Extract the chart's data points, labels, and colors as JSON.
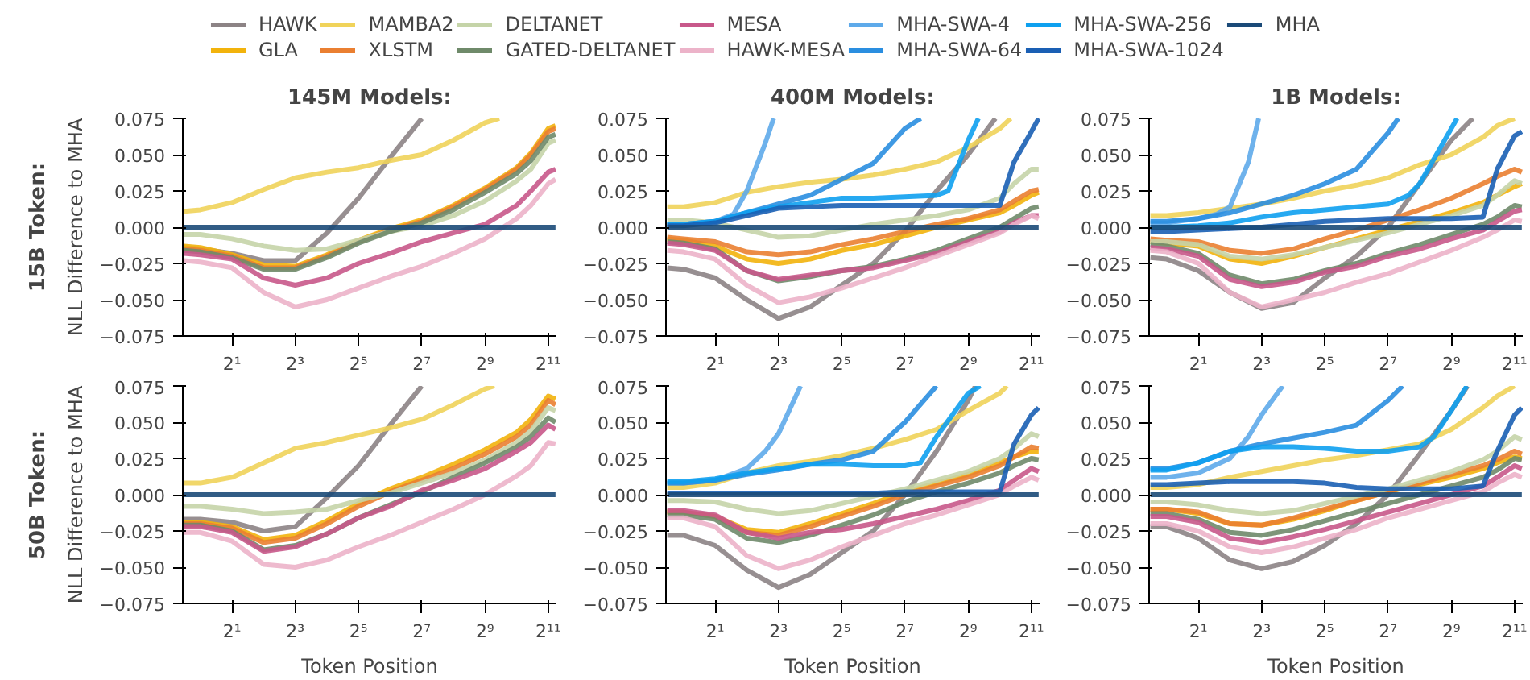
{
  "chart_data": [
    {
      "type": "line",
      "title": "145M Models:",
      "ylabel": "NLL Difference to MHA",
      "annotations": [
        "15B Token:"
      ],
      "log": "x",
      "xlim": [
        0.68,
        2450
      ],
      "ylim": [
        -0.075,
        0.075
      ],
      "xticks": [
        {
          "value": 2,
          "label": "2¹"
        },
        {
          "value": 8,
          "label": "2³"
        },
        {
          "value": 32,
          "label": "2⁵"
        },
        {
          "value": 128,
          "label": "2⁷"
        },
        {
          "value": 512,
          "label": "2⁹"
        },
        {
          "value": 2048,
          "label": "2¹¹"
        }
      ],
      "yticks": [
        {
          "value": -0.075,
          "label": "−0.075"
        },
        {
          "value": -0.05,
          "label": "−0.050"
        },
        {
          "value": -0.025,
          "label": "−0.025"
        },
        {
          "value": 0,
          "label": "0.000"
        },
        {
          "value": 0.025,
          "label": "0.025"
        },
        {
          "value": 0.05,
          "label": "0.050"
        },
        {
          "value": 0.075,
          "label": "0.075"
        }
      ],
      "x": [
        0.7,
        1,
        2,
        4,
        8,
        16,
        32,
        64,
        128,
        256,
        512,
        1024,
        1400,
        2048,
        2400
      ],
      "series": [
        {
          "color": "#8c8385",
          "x": [
            0.7,
            1,
            2,
            4,
            8,
            16,
            32,
            64,
            128
          ],
          "values": [
            -0.014,
            -0.015,
            -0.018,
            -0.023,
            -0.023,
            -0.004,
            0.02,
            0.048,
            0.075
          ]
        },
        {
          "color": "#f2b30c",
          "values": [
            -0.013,
            -0.014,
            -0.019,
            -0.026,
            -0.027,
            -0.019,
            -0.009,
            -0.001,
            0.005,
            0.015,
            0.027,
            0.041,
            0.051,
            0.068,
            0.07
          ]
        },
        {
          "color": "#f0d35a",
          "x": [
            0.7,
            1,
            2,
            4,
            8,
            16,
            32,
            64,
            128,
            256,
            512,
            700
          ],
          "values": [
            0.011,
            0.012,
            0.017,
            0.026,
            0.034,
            0.038,
            0.041,
            0.046,
            0.05,
            0.06,
            0.072,
            0.075
          ]
        },
        {
          "color": "#ea7f31",
          "values": [
            -0.015,
            -0.016,
            -0.02,
            -0.028,
            -0.028,
            -0.02,
            -0.01,
            -0.002,
            0.004,
            0.014,
            0.026,
            0.04,
            0.05,
            0.066,
            0.068
          ]
        },
        {
          "color": "#c5d4a8",
          "values": [
            -0.005,
            -0.005,
            -0.008,
            -0.013,
            -0.016,
            -0.015,
            -0.009,
            -0.003,
            0.001,
            0.008,
            0.018,
            0.032,
            0.04,
            0.058,
            0.06
          ]
        },
        {
          "color": "#6f8a6a",
          "values": [
            -0.016,
            -0.017,
            -0.021,
            -0.029,
            -0.029,
            -0.021,
            -0.011,
            -0.003,
            0.003,
            0.012,
            0.024,
            0.037,
            0.046,
            0.062,
            0.064
          ]
        },
        {
          "color": "#c8588a",
          "values": [
            -0.018,
            -0.019,
            -0.022,
            -0.035,
            -0.04,
            -0.035,
            -0.025,
            -0.018,
            -0.01,
            -0.004,
            0.002,
            0.015,
            0.025,
            0.038,
            0.04
          ]
        },
        {
          "color": "#ecb3c9",
          "values": [
            -0.023,
            -0.024,
            -0.028,
            -0.045,
            -0.055,
            -0.05,
            -0.042,
            -0.034,
            -0.027,
            -0.018,
            -0.008,
            0.006,
            0.015,
            0.03,
            0.033
          ]
        },
        {
          "color": "#1b4a78",
          "values": [
            0,
            0,
            0,
            0,
            0,
            0,
            0,
            0,
            0,
            0,
            0,
            0,
            0,
            0,
            0
          ]
        }
      ]
    },
    {
      "type": "line",
      "title": "400M Models:",
      "legend": "top",
      "log": "x",
      "xlim": [
        0.68,
        2450
      ],
      "ylim": [
        -0.075,
        0.075
      ],
      "xticks": [
        {
          "value": 2,
          "label": "2¹"
        },
        {
          "value": 8,
          "label": "2³"
        },
        {
          "value": 32,
          "label": "2⁵"
        },
        {
          "value": 128,
          "label": "2⁷"
        },
        {
          "value": 512,
          "label": "2⁹"
        },
        {
          "value": 2048,
          "label": "2¹¹"
        }
      ],
      "yticks": [
        {
          "value": -0.075,
          "label": "−0.075"
        },
        {
          "value": -0.05,
          "label": "−0.050"
        },
        {
          "value": -0.025,
          "label": "−0.025"
        },
        {
          "value": 0,
          "label": "0.000"
        },
        {
          "value": 0.025,
          "label": "0.025"
        },
        {
          "value": 0.05,
          "label": "0.050"
        },
        {
          "value": 0.075,
          "label": "0.075"
        }
      ],
      "x": [
        0.7,
        1,
        2,
        4,
        8,
        16,
        32,
        64,
        128,
        256,
        512,
        1024,
        1400,
        2048,
        2400
      ],
      "series": [
        {
          "name": "HAWK",
          "color": "#8c8385",
          "x": [
            0.7,
            1,
            2,
            4,
            8,
            16,
            32,
            64,
            128,
            256,
            512,
            930
          ],
          "values": [
            -0.028,
            -0.029,
            -0.035,
            -0.05,
            -0.063,
            -0.055,
            -0.04,
            -0.025,
            -0.003,
            0.025,
            0.05,
            0.075
          ]
        },
        {
          "name": "GLA",
          "color": "#f2b30c",
          "values": [
            -0.008,
            -0.009,
            -0.013,
            -0.022,
            -0.025,
            -0.022,
            -0.016,
            -0.012,
            -0.006,
            0.0,
            0.005,
            0.01,
            0.015,
            0.022,
            0.024
          ]
        },
        {
          "name": "MAMBA2",
          "color": "#f0d35a",
          "x": [
            0.7,
            1,
            2,
            4,
            8,
            16,
            32,
            64,
            128,
            256,
            512,
            1024,
            1300
          ],
          "values": [
            0.014,
            0.014,
            0.017,
            0.024,
            0.028,
            0.031,
            0.033,
            0.036,
            0.04,
            0.045,
            0.055,
            0.068,
            0.075
          ]
        },
        {
          "name": "XLSTM",
          "color": "#ea7f31",
          "values": [
            -0.007,
            -0.008,
            -0.01,
            -0.017,
            -0.019,
            -0.017,
            -0.012,
            -0.008,
            -0.003,
            0.002,
            0.006,
            0.012,
            0.018,
            0.025,
            0.026
          ]
        },
        {
          "name": "DELTANET",
          "color": "#c5d4a8",
          "values": [
            0.005,
            0.005,
            0.003,
            -0.002,
            -0.007,
            -0.006,
            -0.002,
            0.002,
            0.005,
            0.008,
            0.012,
            0.02,
            0.03,
            0.04,
            0.04
          ]
        },
        {
          "name": "GATED-DELTANET",
          "color": "#6f8a6a",
          "values": [
            -0.01,
            -0.011,
            -0.015,
            -0.03,
            -0.037,
            -0.034,
            -0.03,
            -0.027,
            -0.022,
            -0.016,
            -0.008,
            0.0,
            0.006,
            0.013,
            0.014
          ]
        },
        {
          "name": "MESA",
          "color": "#c8588a",
          "values": [
            -0.011,
            -0.012,
            -0.016,
            -0.03,
            -0.036,
            -0.033,
            -0.03,
            -0.028,
            -0.023,
            -0.018,
            -0.01,
            -0.003,
            0.003,
            0.008,
            0.008
          ]
        },
        {
          "name": "HAWK-MESA",
          "color": "#ecb3c9",
          "values": [
            -0.016,
            -0.017,
            -0.022,
            -0.04,
            -0.052,
            -0.048,
            -0.042,
            -0.035,
            -0.028,
            -0.02,
            -0.012,
            -0.004,
            0.002,
            0.008,
            0.006
          ]
        },
        {
          "name": "MHA-SWA-4",
          "color": "#5eaaea",
          "x": [
            0.7,
            1,
            2,
            3,
            4,
            6,
            7.2
          ],
          "values": [
            0.002,
            0.002,
            0.004,
            0.009,
            0.025,
            0.058,
            0.075
          ]
        },
        {
          "name": "MHA-SWA-64",
          "color": "#2a8ee0",
          "x": [
            0.7,
            1,
            2,
            4,
            8,
            16,
            32,
            64,
            128,
            181
          ],
          "values": [
            0.002,
            0.002,
            0.004,
            0.01,
            0.016,
            0.022,
            0.033,
            0.044,
            0.068,
            0.075
          ]
        },
        {
          "name": "MHA-SWA-256",
          "color": "#0ea0ef",
          "x": [
            0.7,
            1,
            2,
            4,
            8,
            16,
            32,
            64,
            128,
            256,
            330,
            512,
            640
          ],
          "values": [
            0.002,
            0.002,
            0.004,
            0.01,
            0.014,
            0.017,
            0.02,
            0.02,
            0.021,
            0.022,
            0.025,
            0.06,
            0.075
          ]
        },
        {
          "name": "MHA-SWA-1024",
          "color": "#1a5fb4",
          "values": [
            0.001,
            0.001,
            0.003,
            0.008,
            0.013,
            0.014,
            0.015,
            0.015,
            0.015,
            0.015,
            0.015,
            0.015,
            0.045,
            0.066,
            0.075
          ]
        },
        {
          "name": "MHA",
          "color": "#1b4a78",
          "values": [
            0,
            0,
            0,
            0,
            0,
            0,
            0,
            0,
            0,
            0,
            0,
            0,
            0,
            0,
            0
          ]
        }
      ]
    },
    {
      "type": "line",
      "title": "1B Models:",
      "log": "x",
      "xlim": [
        0.68,
        2450
      ],
      "ylim": [
        -0.075,
        0.075
      ],
      "xticks": [
        {
          "value": 2,
          "label": "2¹"
        },
        {
          "value": 8,
          "label": "2³"
        },
        {
          "value": 32,
          "label": "2⁵"
        },
        {
          "value": 128,
          "label": "2⁷"
        },
        {
          "value": 512,
          "label": "2⁹"
        },
        {
          "value": 2048,
          "label": "2¹¹"
        }
      ],
      "yticks": [
        {
          "value": -0.075,
          "label": "−0.075"
        },
        {
          "value": -0.05,
          "label": "−0.050"
        },
        {
          "value": -0.025,
          "label": "−0.025"
        },
        {
          "value": 0,
          "label": "0.000"
        },
        {
          "value": 0.025,
          "label": "0.025"
        },
        {
          "value": 0.05,
          "label": "0.050"
        },
        {
          "value": 0.075,
          "label": "0.075"
        }
      ],
      "x": [
        0.7,
        1,
        2,
        4,
        8,
        16,
        32,
        64,
        128,
        256,
        512,
        1024,
        1400,
        2048,
        2400
      ],
      "series": [
        {
          "color": "#8c8385",
          "x": [
            0.7,
            1,
            2,
            4,
            8,
            16,
            32,
            64,
            128,
            256,
            512,
            820
          ],
          "values": [
            -0.021,
            -0.022,
            -0.03,
            -0.045,
            -0.056,
            -0.052,
            -0.035,
            -0.02,
            0.0,
            0.03,
            0.06,
            0.075
          ]
        },
        {
          "color": "#f2b30c",
          "values": [
            -0.01,
            -0.011,
            -0.013,
            -0.022,
            -0.025,
            -0.02,
            -0.014,
            -0.008,
            -0.002,
            0.004,
            0.01,
            0.017,
            0.022,
            0.028,
            0.03
          ]
        },
        {
          "color": "#f0d35a",
          "x": [
            0.7,
            1,
            2,
            4,
            8,
            16,
            32,
            64,
            128,
            256,
            512,
            1024,
            1400,
            2048
          ],
          "values": [
            0.008,
            0.008,
            0.01,
            0.013,
            0.016,
            0.02,
            0.025,
            0.029,
            0.034,
            0.043,
            0.05,
            0.062,
            0.07,
            0.075
          ]
        },
        {
          "color": "#ea7f31",
          "values": [
            -0.008,
            -0.009,
            -0.01,
            -0.016,
            -0.018,
            -0.015,
            -0.008,
            -0.002,
            0.005,
            0.012,
            0.02,
            0.03,
            0.035,
            0.04,
            0.038
          ]
        },
        {
          "color": "#c5d4a8",
          "values": [
            -0.01,
            -0.01,
            -0.012,
            -0.02,
            -0.022,
            -0.019,
            -0.014,
            -0.009,
            -0.004,
            0.002,
            0.008,
            0.015,
            0.022,
            0.032,
            0.03
          ]
        },
        {
          "color": "#6f8a6a",
          "values": [
            -0.012,
            -0.013,
            -0.018,
            -0.033,
            -0.039,
            -0.036,
            -0.03,
            -0.025,
            -0.018,
            -0.012,
            -0.005,
            0.002,
            0.007,
            0.015,
            0.014
          ]
        },
        {
          "color": "#c8588a",
          "values": [
            -0.014,
            -0.015,
            -0.02,
            -0.036,
            -0.041,
            -0.038,
            -0.031,
            -0.027,
            -0.02,
            -0.015,
            -0.008,
            -0.002,
            0.004,
            0.011,
            0.012
          ]
        },
        {
          "color": "#ecb3c9",
          "values": [
            -0.016,
            -0.017,
            -0.025,
            -0.045,
            -0.055,
            -0.05,
            -0.045,
            -0.038,
            -0.032,
            -0.024,
            -0.016,
            -0.007,
            -0.002,
            0.005,
            0.004
          ]
        },
        {
          "color": "#5eaaea",
          "x": [
            0.7,
            1,
            2,
            3,
            4,
            6,
            7.5
          ],
          "values": [
            0.003,
            0.003,
            0.006,
            0.009,
            0.014,
            0.045,
            0.075
          ]
        },
        {
          "color": "#2a8ee0",
          "x": [
            0.7,
            1,
            2,
            4,
            8,
            16,
            32,
            64,
            128,
            160
          ],
          "values": [
            0.004,
            0.004,
            0.006,
            0.01,
            0.016,
            0.022,
            0.03,
            0.04,
            0.065,
            0.075
          ]
        },
        {
          "color": "#0ea0ef",
          "x": [
            0.7,
            1,
            2,
            4,
            8,
            16,
            32,
            64,
            128,
            200,
            256,
            512,
            580
          ],
          "values": [
            0.0,
            0.0,
            0.001,
            0.003,
            0.007,
            0.01,
            0.012,
            0.014,
            0.016,
            0.022,
            0.03,
            0.068,
            0.075
          ]
        },
        {
          "color": "#1a5fb4",
          "values": [
            -0.003,
            -0.003,
            -0.002,
            -0.001,
            0.0,
            0.002,
            0.004,
            0.005,
            0.006,
            0.006,
            0.006,
            0.007,
            0.04,
            0.063,
            0.066
          ]
        },
        {
          "color": "#1b4a78",
          "values": [
            0,
            0,
            0,
            0,
            0,
            0,
            0,
            0,
            0,
            0,
            0,
            0,
            0,
            0,
            0
          ]
        }
      ]
    },
    {
      "type": "line",
      "xlabel": "Token Position",
      "ylabel": "NLL Difference to MHA",
      "annotations": [
        "50B Token:"
      ],
      "log": "x",
      "xlim": [
        0.68,
        2450
      ],
      "ylim": [
        -0.075,
        0.075
      ],
      "xticks": [
        {
          "value": 2,
          "label": "2¹"
        },
        {
          "value": 8,
          "label": "2³"
        },
        {
          "value": 32,
          "label": "2⁵"
        },
        {
          "value": 128,
          "label": "2⁷"
        },
        {
          "value": 512,
          "label": "2⁹"
        },
        {
          "value": 2048,
          "label": "2¹¹"
        }
      ],
      "yticks": [
        {
          "value": -0.075,
          "label": "−0.075"
        },
        {
          "value": -0.05,
          "label": "−0.050"
        },
        {
          "value": -0.025,
          "label": "−0.025"
        },
        {
          "value": 0,
          "label": "0.000"
        },
        {
          "value": 0.025,
          "label": "0.025"
        },
        {
          "value": 0.05,
          "label": "0.050"
        },
        {
          "value": 0.075,
          "label": "0.075"
        }
      ],
      "x": [
        0.7,
        1,
        2,
        4,
        8,
        16,
        32,
        64,
        128,
        256,
        512,
        1024,
        1400,
        2048,
        2400
      ],
      "series": [
        {
          "color": "#8c8385",
          "x": [
            0.7,
            1,
            2,
            4,
            8,
            16,
            32,
            64,
            128
          ],
          "values": [
            -0.017,
            -0.017,
            -0.019,
            -0.025,
            -0.022,
            -0.002,
            0.02,
            0.048,
            0.075
          ]
        },
        {
          "color": "#f2b30c",
          "values": [
            -0.019,
            -0.019,
            -0.022,
            -0.031,
            -0.028,
            -0.018,
            -0.006,
            0.004,
            0.012,
            0.021,
            0.031,
            0.043,
            0.052,
            0.068,
            0.066
          ]
        },
        {
          "color": "#f0d35a",
          "x": [
            0.7,
            1,
            2,
            4,
            8,
            16,
            32,
            64,
            128,
            256,
            512,
            630
          ],
          "values": [
            0.008,
            0.008,
            0.012,
            0.022,
            0.032,
            0.036,
            0.041,
            0.046,
            0.052,
            0.062,
            0.073,
            0.075
          ]
        },
        {
          "color": "#ea7f31",
          "values": [
            -0.02,
            -0.02,
            -0.023,
            -0.033,
            -0.03,
            -0.02,
            -0.008,
            0.002,
            0.01,
            0.018,
            0.028,
            0.04,
            0.048,
            0.065,
            0.062
          ]
        },
        {
          "color": "#c5d4a8",
          "values": [
            -0.008,
            -0.008,
            -0.01,
            -0.013,
            -0.012,
            -0.01,
            -0.004,
            0.001,
            0.008,
            0.015,
            0.024,
            0.036,
            0.044,
            0.06,
            0.058
          ]
        },
        {
          "color": "#6f8a6a",
          "values": [
            -0.021,
            -0.021,
            -0.025,
            -0.038,
            -0.035,
            -0.027,
            -0.016,
            -0.007,
            0.002,
            0.012,
            0.022,
            0.033,
            0.04,
            0.053,
            0.05
          ]
        },
        {
          "color": "#c8588a",
          "values": [
            -0.022,
            -0.022,
            -0.026,
            -0.039,
            -0.036,
            -0.027,
            -0.016,
            -0.008,
            0.003,
            0.01,
            0.018,
            0.03,
            0.036,
            0.048,
            0.045
          ]
        },
        {
          "color": "#ecb3c9",
          "values": [
            -0.026,
            -0.026,
            -0.032,
            -0.048,
            -0.05,
            -0.045,
            -0.036,
            -0.028,
            -0.019,
            -0.01,
            0.0,
            0.013,
            0.02,
            0.036,
            0.035
          ]
        },
        {
          "color": "#1b4a78",
          "values": [
            0,
            0,
            0,
            0,
            0,
            0,
            0,
            0,
            0,
            0,
            0,
            0,
            0,
            0,
            0
          ]
        }
      ]
    },
    {
      "type": "line",
      "xlabel": "Token Position",
      "log": "x",
      "xlim": [
        0.68,
        2450
      ],
      "ylim": [
        -0.075,
        0.075
      ],
      "xticks": [
        {
          "value": 2,
          "label": "2¹"
        },
        {
          "value": 8,
          "label": "2³"
        },
        {
          "value": 32,
          "label": "2⁵"
        },
        {
          "value": 128,
          "label": "2⁷"
        },
        {
          "value": 512,
          "label": "2⁹"
        },
        {
          "value": 2048,
          "label": "2¹¹"
        }
      ],
      "yticks": [
        {
          "value": -0.075,
          "label": "−0.075"
        },
        {
          "value": -0.05,
          "label": "−0.050"
        },
        {
          "value": -0.025,
          "label": "−0.025"
        },
        {
          "value": 0,
          "label": "0.000"
        },
        {
          "value": 0.025,
          "label": "0.025"
        },
        {
          "value": 0.05,
          "label": "0.050"
        },
        {
          "value": 0.075,
          "label": "0.075"
        }
      ],
      "x": [
        0.7,
        1,
        2,
        4,
        8,
        16,
        32,
        64,
        128,
        256,
        512,
        1024,
        1400,
        2048,
        2400
      ],
      "series": [
        {
          "color": "#8c8385",
          "x": [
            0.7,
            1,
            2,
            4,
            8,
            16,
            32,
            64,
            128,
            256,
            512,
            600
          ],
          "values": [
            -0.028,
            -0.028,
            -0.035,
            -0.052,
            -0.064,
            -0.055,
            -0.04,
            -0.025,
            0.0,
            0.03,
            0.065,
            0.075
          ]
        },
        {
          "color": "#f2b30c",
          "values": [
            -0.012,
            -0.012,
            -0.015,
            -0.024,
            -0.026,
            -0.02,
            -0.013,
            -0.006,
            0.002,
            0.008,
            0.014,
            0.022,
            0.026,
            0.03,
            0.03
          ]
        },
        {
          "color": "#f0d35a",
          "x": [
            0.7,
            1,
            2,
            4,
            8,
            16,
            32,
            64,
            128,
            256,
            512,
            1024,
            1200
          ],
          "values": [
            0.005,
            0.005,
            0.008,
            0.015,
            0.02,
            0.023,
            0.027,
            0.032,
            0.038,
            0.045,
            0.058,
            0.07,
            0.075
          ]
        },
        {
          "color": "#ea7f31",
          "values": [
            -0.012,
            -0.012,
            -0.015,
            -0.026,
            -0.028,
            -0.022,
            -0.015,
            -0.008,
            0.0,
            0.006,
            0.012,
            0.02,
            0.026,
            0.033,
            0.032
          ]
        },
        {
          "color": "#c5d4a8",
          "values": [
            -0.004,
            -0.004,
            -0.005,
            -0.01,
            -0.013,
            -0.011,
            -0.006,
            -0.001,
            0.004,
            0.01,
            0.016,
            0.025,
            0.032,
            0.042,
            0.04
          ]
        },
        {
          "color": "#6f8a6a",
          "values": [
            -0.014,
            -0.014,
            -0.017,
            -0.03,
            -0.033,
            -0.028,
            -0.021,
            -0.014,
            -0.005,
            0.002,
            0.008,
            0.015,
            0.02,
            0.025,
            0.024
          ]
        },
        {
          "color": "#c8588a",
          "values": [
            -0.011,
            -0.011,
            -0.014,
            -0.026,
            -0.03,
            -0.026,
            -0.024,
            -0.02,
            -0.015,
            -0.01,
            -0.004,
            0.003,
            0.01,
            0.018,
            0.016
          ]
        },
        {
          "color": "#ecb3c9",
          "values": [
            -0.016,
            -0.016,
            -0.022,
            -0.042,
            -0.051,
            -0.045,
            -0.036,
            -0.028,
            -0.02,
            -0.014,
            -0.007,
            0.0,
            0.006,
            0.012,
            0.01
          ]
        },
        {
          "color": "#5eaaea",
          "x": [
            0.7,
            1,
            2,
            4,
            6,
            8,
            13
          ],
          "values": [
            0.008,
            0.008,
            0.01,
            0.018,
            0.03,
            0.042,
            0.075
          ]
        },
        {
          "color": "#2a8ee0",
          "x": [
            0.7,
            1,
            2,
            4,
            8,
            16,
            32,
            64,
            128,
            256
          ],
          "values": [
            0.008,
            0.008,
            0.01,
            0.014,
            0.017,
            0.021,
            0.024,
            0.03,
            0.05,
            0.075
          ]
        },
        {
          "color": "#0ea0ef",
          "x": [
            0.7,
            1,
            2,
            4,
            8,
            16,
            32,
            64,
            128,
            180,
            256,
            512,
            670
          ],
          "values": [
            0.009,
            0.009,
            0.011,
            0.015,
            0.018,
            0.021,
            0.021,
            0.02,
            0.02,
            0.022,
            0.04,
            0.07,
            0.075
          ]
        },
        {
          "color": "#1a5fb4",
          "values": [
            0.001,
            0.001,
            0.001,
            0.001,
            0.001,
            0.001,
            0.001,
            0.001,
            0.002,
            0.002,
            0.002,
            0.002,
            0.035,
            0.055,
            0.06
          ]
        },
        {
          "color": "#1b4a78",
          "values": [
            0,
            0,
            0,
            0,
            0,
            0,
            0,
            0,
            0,
            0,
            0,
            0,
            0,
            0,
            0
          ]
        }
      ]
    },
    {
      "type": "line",
      "xlabel": "Token Position",
      "log": "x",
      "xlim": [
        0.68,
        2450
      ],
      "ylim": [
        -0.075,
        0.075
      ],
      "xticks": [
        {
          "value": 2,
          "label": "2¹"
        },
        {
          "value": 8,
          "label": "2³"
        },
        {
          "value": 32,
          "label": "2⁵"
        },
        {
          "value": 128,
          "label": "2⁷"
        },
        {
          "value": 512,
          "label": "2⁹"
        },
        {
          "value": 2048,
          "label": "2¹¹"
        }
      ],
      "yticks": [
        {
          "value": -0.075,
          "label": "−0.075"
        },
        {
          "value": -0.05,
          "label": "−0.050"
        },
        {
          "value": -0.025,
          "label": "−0.025"
        },
        {
          "value": 0,
          "label": "0.000"
        },
        {
          "value": 0.025,
          "label": "0.025"
        },
        {
          "value": 0.05,
          "label": "0.050"
        },
        {
          "value": 0.075,
          "label": "0.075"
        }
      ],
      "x": [
        0.7,
        1,
        2,
        4,
        8,
        16,
        32,
        64,
        128,
        256,
        512,
        1024,
        1400,
        2048,
        2400
      ],
      "series": [
        {
          "color": "#8c8385",
          "x": [
            0.7,
            1,
            2,
            4,
            8,
            16,
            32,
            64,
            128,
            256,
            512,
            730
          ],
          "values": [
            -0.022,
            -0.022,
            -0.03,
            -0.045,
            -0.051,
            -0.046,
            -0.035,
            -0.02,
            0.0,
            0.028,
            0.058,
            0.075
          ]
        },
        {
          "color": "#f2b30c",
          "values": [
            -0.01,
            -0.01,
            -0.013,
            -0.02,
            -0.021,
            -0.017,
            -0.011,
            -0.004,
            0.002,
            0.007,
            0.012,
            0.018,
            0.022,
            0.026,
            0.025
          ]
        },
        {
          "color": "#f0d35a",
          "x": [
            0.7,
            1,
            2,
            4,
            8,
            16,
            32,
            64,
            128,
            256,
            512,
            1024,
            1400,
            2048
          ],
          "values": [
            0.005,
            0.005,
            0.007,
            0.012,
            0.016,
            0.02,
            0.024,
            0.027,
            0.031,
            0.035,
            0.045,
            0.06,
            0.068,
            0.075
          ]
        },
        {
          "color": "#ea7f31",
          "values": [
            -0.01,
            -0.01,
            -0.012,
            -0.02,
            -0.021,
            -0.016,
            -0.01,
            -0.004,
            0.002,
            0.008,
            0.014,
            0.02,
            0.024,
            0.03,
            0.028
          ]
        },
        {
          "color": "#c5d4a8",
          "values": [
            -0.005,
            -0.005,
            -0.007,
            -0.011,
            -0.013,
            -0.011,
            -0.006,
            -0.001,
            0.004,
            0.01,
            0.016,
            0.024,
            0.03,
            0.04,
            0.038
          ]
        },
        {
          "color": "#6f8a6a",
          "values": [
            -0.013,
            -0.013,
            -0.017,
            -0.026,
            -0.028,
            -0.024,
            -0.018,
            -0.012,
            -0.006,
            0.0,
            0.006,
            0.012,
            0.017,
            0.025,
            0.024
          ]
        },
        {
          "color": "#c8588a",
          "values": [
            -0.015,
            -0.015,
            -0.019,
            -0.03,
            -0.033,
            -0.029,
            -0.024,
            -0.018,
            -0.012,
            -0.006,
            0.0,
            0.006,
            0.012,
            0.02,
            0.018
          ]
        },
        {
          "color": "#ecb3c9",
          "values": [
            -0.02,
            -0.02,
            -0.025,
            -0.036,
            -0.04,
            -0.036,
            -0.03,
            -0.024,
            -0.016,
            -0.01,
            -0.004,
            0.002,
            0.008,
            0.014,
            0.012
          ]
        },
        {
          "color": "#5eaaea",
          "x": [
            0.7,
            1,
            2,
            4,
            6,
            8,
            12.7
          ],
          "values": [
            0.012,
            0.012,
            0.015,
            0.025,
            0.04,
            0.055,
            0.075
          ]
        },
        {
          "color": "#2a8ee0",
          "x": [
            0.7,
            1,
            2,
            4,
            8,
            16,
            32,
            64,
            128,
            176
          ],
          "values": [
            0.018,
            0.018,
            0.022,
            0.03,
            0.035,
            0.039,
            0.043,
            0.048,
            0.065,
            0.075
          ]
        },
        {
          "color": "#0ea0ef",
          "x": [
            0.7,
            1,
            2,
            4,
            8,
            16,
            32,
            64,
            128,
            256,
            350,
            512,
            720
          ],
          "values": [
            0.017,
            0.017,
            0.022,
            0.03,
            0.033,
            0.033,
            0.032,
            0.03,
            0.03,
            0.033,
            0.04,
            0.058,
            0.075
          ]
        },
        {
          "color": "#1a5fb4",
          "values": [
            0.007,
            0.007,
            0.008,
            0.009,
            0.009,
            0.009,
            0.008,
            0.005,
            0.004,
            0.004,
            0.004,
            0.006,
            0.03,
            0.055,
            0.06
          ]
        },
        {
          "color": "#1b4a78",
          "values": [
            0,
            0,
            0,
            0,
            0,
            0,
            0,
            0,
            0,
            0,
            0,
            0,
            0,
            0,
            0
          ]
        }
      ]
    }
  ]
}
